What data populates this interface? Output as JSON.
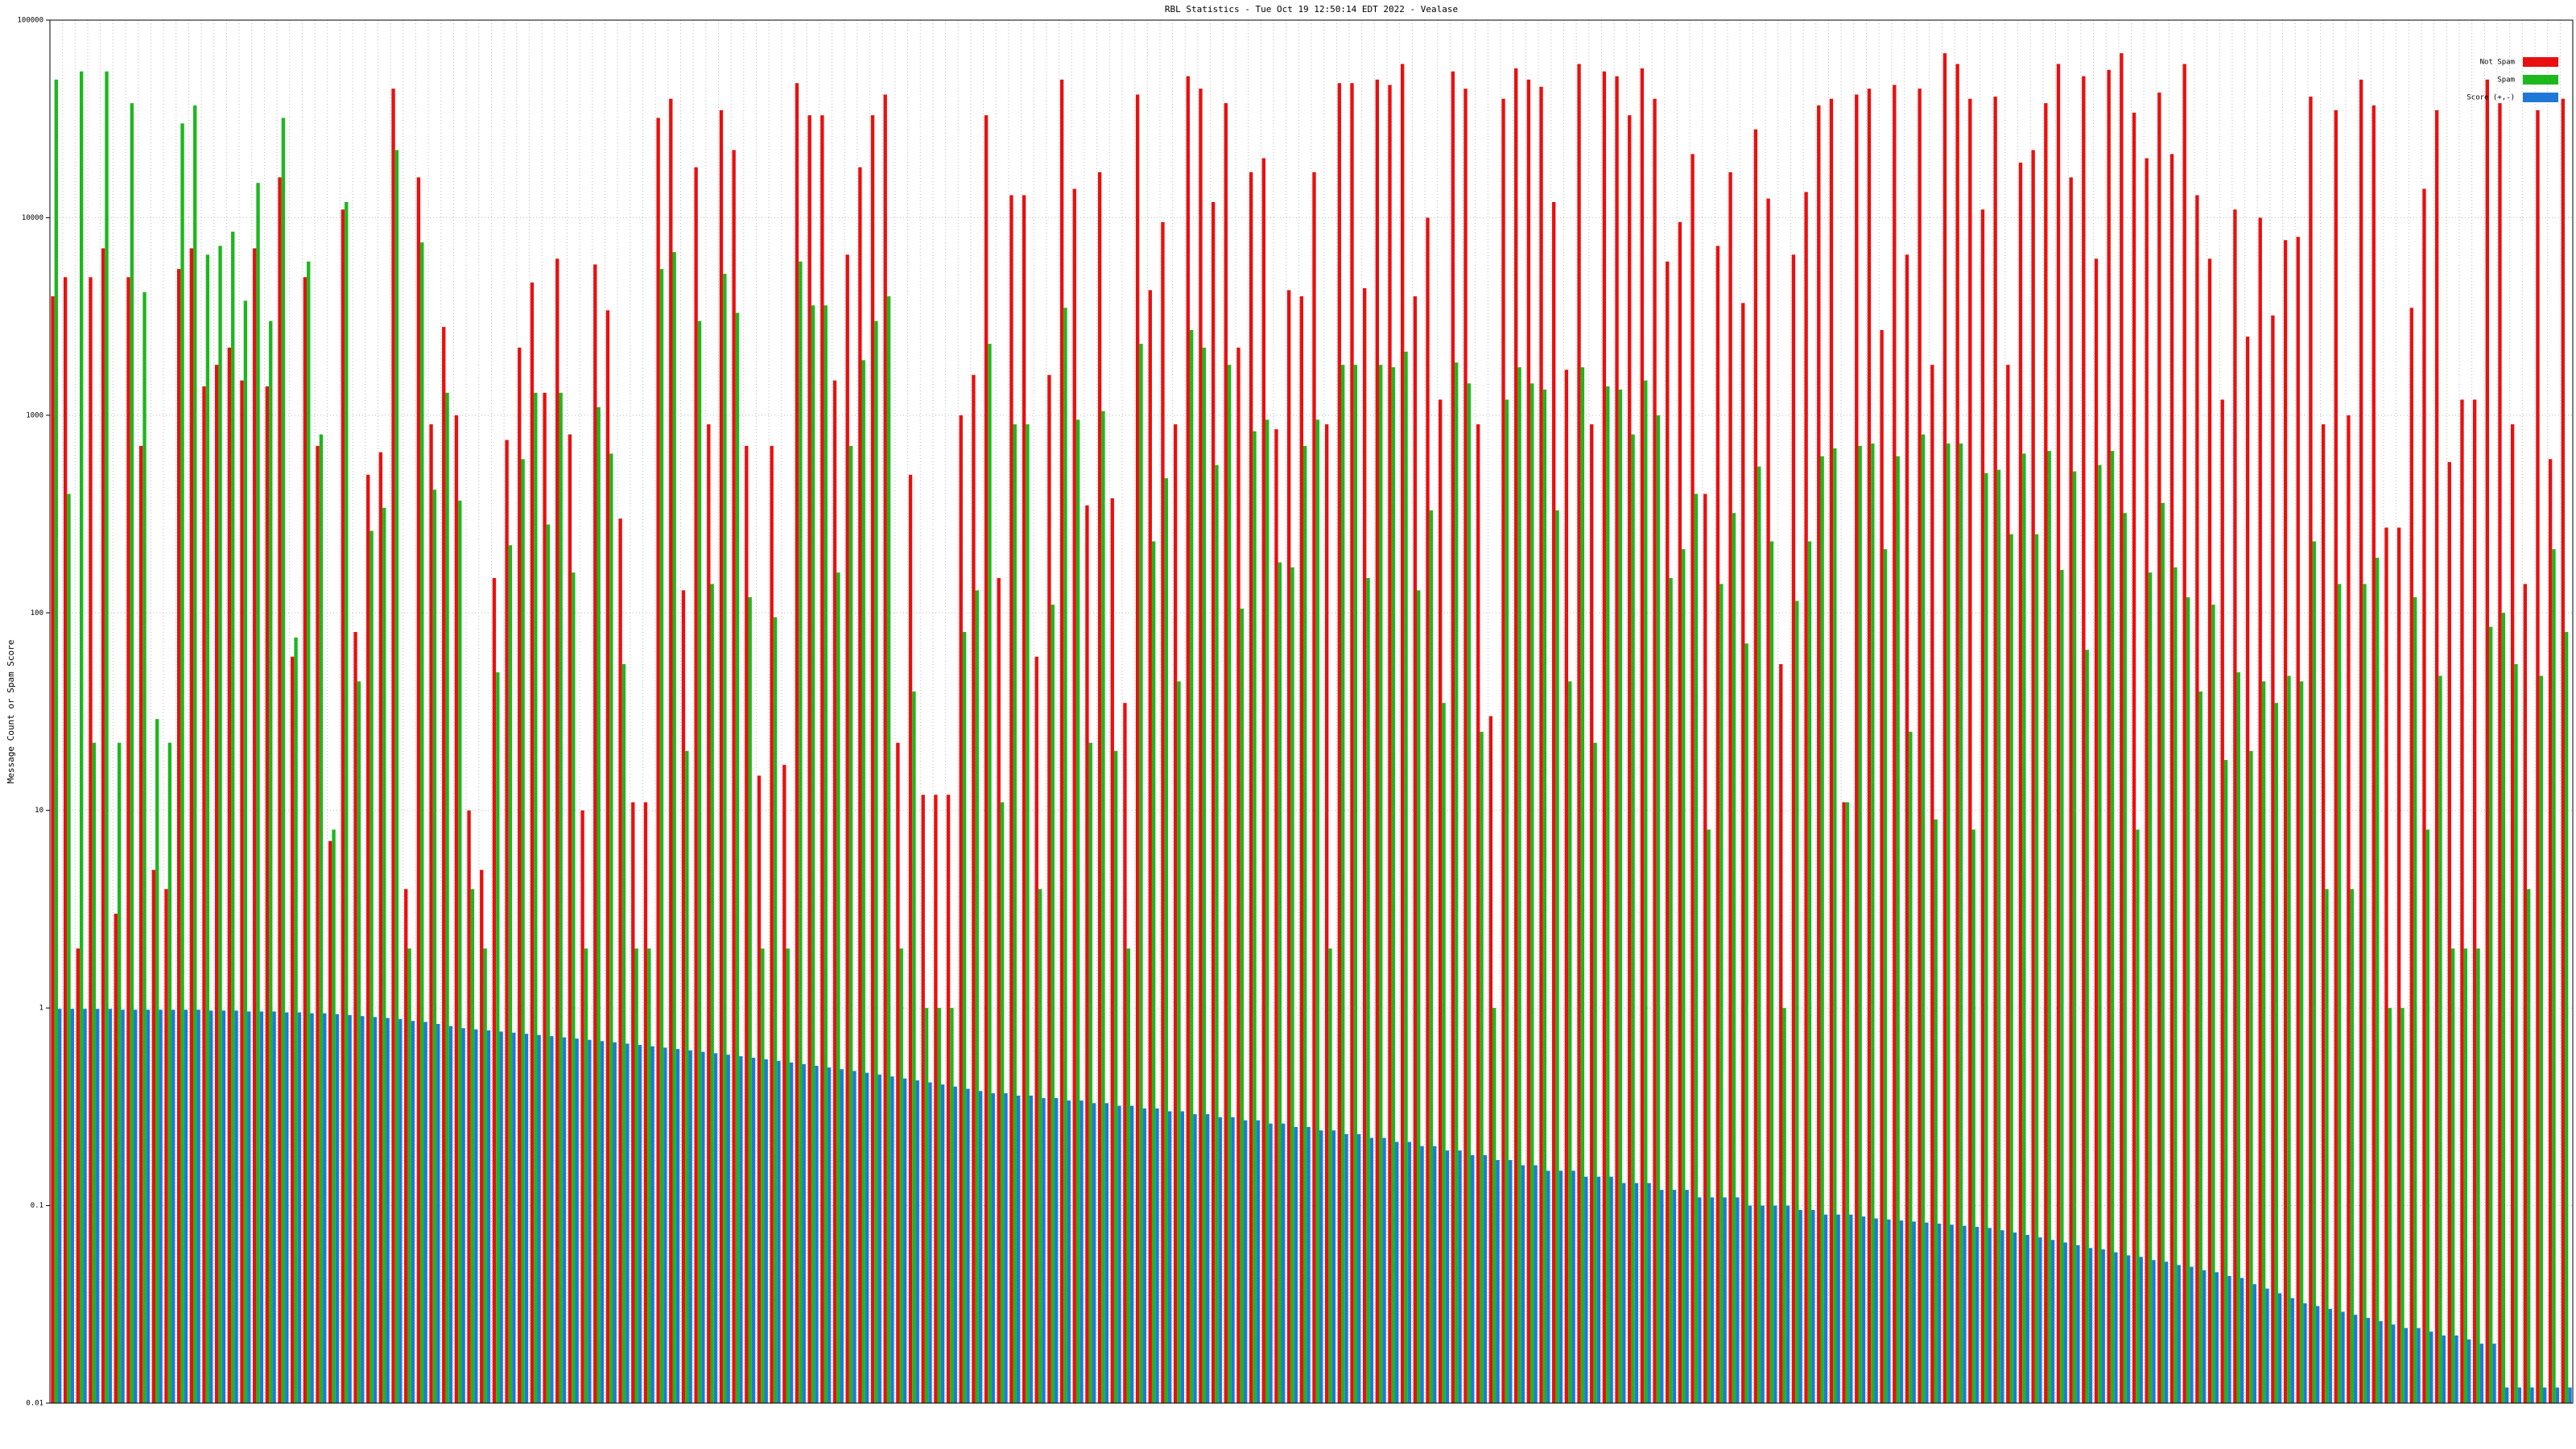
{
  "chart_data": {
    "type": "bar",
    "title": "RBL Statistics - Tue Oct 19 12:50:14 EDT 2022 - Vealase",
    "y_label": "Message Count or Spam Score",
    "log_scale": true,
    "grid": true,
    "legend": "upper right",
    "ylim": [
      0.01,
      100000
    ],
    "yticks": [
      0.01,
      0.1,
      1,
      10,
      100,
      1000,
      10000,
      100000
    ],
    "categories": [
      null,
      null,
      null,
      null,
      null,
      null,
      null,
      null,
      null,
      null,
      null,
      null,
      null,
      null,
      null,
      null,
      null,
      null,
      null,
      null,
      null,
      null,
      null,
      null,
      null,
      null,
      null,
      null,
      null,
      null,
      null,
      null,
      null,
      null,
      null,
      null,
      null,
      null,
      null,
      null,
      null,
      null,
      null,
      null,
      null,
      null,
      null,
      null,
      null,
      null,
      null,
      null,
      null,
      null,
      null,
      null,
      null,
      null,
      null,
      null,
      null,
      null,
      null,
      null,
      null,
      null,
      null,
      null,
      null,
      null,
      null,
      null,
      null,
      null,
      null,
      null,
      null,
      null,
      null,
      null,
      null,
      null,
      null,
      null,
      null,
      null,
      null,
      null,
      null,
      null,
      null,
      null,
      null,
      null,
      null,
      null,
      null,
      null,
      null,
      null,
      null,
      null,
      null,
      null,
      null,
      null,
      null,
      null,
      null,
      null,
      null,
      null,
      null,
      null,
      null,
      null,
      null,
      null,
      null,
      null,
      null,
      null,
      null,
      null,
      null,
      null,
      null,
      null,
      null,
      null,
      null,
      null,
      null,
      null,
      null,
      null,
      null,
      null,
      null,
      null,
      null,
      null,
      null,
      null,
      null,
      null,
      null,
      null,
      null,
      null,
      null,
      null,
      null,
      null,
      null,
      null,
      null,
      null,
      null,
      null,
      null,
      null,
      null,
      null,
      null,
      null,
      null,
      null,
      null,
      null,
      null,
      null,
      null,
      null,
      null,
      null,
      null,
      null,
      null,
      null,
      null,
      null,
      null,
      null,
      null,
      null,
      null,
      null,
      null,
      null,
      null,
      null,
      null,
      null,
      null,
      null,
      null,
      null,
      null,
      null
    ],
    "series": [
      {
        "name": "Not Spam",
        "color": "#e81010",
        "values": [
          4000,
          5000,
          2,
          5000,
          7000,
          3,
          5000,
          700,
          5,
          4,
          5500,
          7000,
          1400,
          1800,
          2200,
          1500,
          7000,
          1400,
          16000,
          60,
          5000,
          700,
          7,
          11000,
          80,
          500,
          650,
          45000,
          4,
          16000,
          900,
          2800,
          1000,
          10,
          5,
          150,
          750,
          2200,
          4700,
          1300,
          6200,
          800,
          10,
          5800,
          3400,
          300,
          11,
          11,
          32000,
          40000,
          130,
          18000,
          900,
          35000,
          22000,
          700,
          15,
          700,
          17,
          48000,
          33000,
          33000,
          1500,
          6500,
          18000,
          33000,
          42000,
          22,
          500,
          12,
          12,
          12,
          1000,
          1600,
          33000,
          150,
          13000,
          13000,
          60,
          1600,
          50000,
          14000,
          350,
          17000,
          380,
          35,
          42000,
          4300,
          9500,
          900,
          52000,
          45000,
          12000,
          38000,
          2200,
          17000,
          20000,
          850,
          4300,
          4000,
          17000,
          900,
          48000,
          48000,
          4400,
          50000,
          47000,
          60000,
          4000,
          10000,
          1200,
          55000,
          45000,
          900,
          30,
          40000,
          57000,
          50000,
          46000,
          12000,
          1700,
          60000,
          900,
          55000,
          52000,
          33000,
          57000,
          40000,
          6000,
          9500,
          21000,
          400,
          7200,
          17000,
          3700,
          28000,
          12500,
          55,
          6500,
          13500,
          37000,
          40000,
          11,
          42000,
          45000,
          2700,
          47000,
          6500,
          45000,
          1800,
          68000,
          60000,
          40000,
          11000,
          41000,
          1800,
          19000,
          22000,
          38000,
          60000,
          16000,
          52000,
          6200,
          56000,
          68000,
          34000,
          20000,
          43000,
          21000,
          60000,
          13000,
          6200,
          1200,
          11000,
          2500,
          10000,
          3200,
          7700,
          8000,
          41000,
          900,
          35000,
          1000,
          50000,
          37000,
          270,
          270,
          3500,
          14000,
          35000,
          580,
          1200,
          1200,
          50000,
          38000,
          900,
          140,
          35000,
          600,
          40000
        ]
      },
      {
        "name": "Spam",
        "color": "#1cb81c",
        "values": [
          50000,
          400,
          55000,
          22,
          55000,
          22,
          38000,
          4200,
          29,
          22,
          30000,
          37000,
          6500,
          7200,
          8500,
          3800,
          15000,
          3000,
          32000,
          75,
          6000,
          800,
          8,
          12000,
          45,
          260,
          340,
          22000,
          2,
          7500,
          420,
          1300,
          370,
          4,
          2,
          50,
          220,
          600,
          1300,
          280,
          1300,
          160,
          2,
          1100,
          640,
          55,
          2,
          2,
          5500,
          6700,
          20,
          3000,
          140,
          5200,
          3300,
          120,
          2,
          95,
          2,
          6000,
          3600,
          3600,
          160,
          700,
          1900,
          3000,
          4000,
          2,
          40,
          1,
          1,
          1,
          80,
          130,
          2300,
          11,
          900,
          900,
          4,
          110,
          3500,
          950,
          22,
          1050,
          20,
          2,
          2300,
          230,
          480,
          45,
          2700,
          2200,
          560,
          1800,
          105,
          830,
          950,
          180,
          170,
          700,
          950,
          2,
          1800,
          1800,
          150,
          1800,
          1750,
          2100,
          130,
          330,
          35,
          1850,
          1450,
          25,
          1,
          1200,
          1750,
          1450,
          1350,
          330,
          45,
          1750,
          22,
          1400,
          1350,
          800,
          1500,
          1000,
          150,
          210,
          400,
          8,
          140,
          320,
          70,
          550,
          230,
          1,
          115,
          230,
          620,
          680,
          11,
          700,
          720,
          210,
          620,
          25,
          800,
          9,
          720,
          720,
          8,
          510,
          530,
          250,
          640,
          250,
          660,
          165,
          520,
          65,
          560,
          660,
          320,
          8,
          160,
          360,
          170,
          120,
          40,
          110,
          18,
          50,
          20,
          45,
          35,
          48,
          45,
          230,
          4,
          140,
          4,
          140,
          190,
          1,
          1,
          120,
          8,
          48,
          2,
          2,
          2,
          85,
          100,
          55,
          4,
          48,
          210,
          80
        ]
      },
      {
        "name": "Score (+,-)",
        "color": "#1f78d8",
        "values": [
          0.99,
          0.99,
          0.99,
          0.99,
          0.99,
          0.98,
          0.98,
          0.98,
          0.98,
          0.98,
          0.98,
          0.98,
          0.97,
          0.97,
          0.97,
          0.96,
          0.96,
          0.96,
          0.95,
          0.95,
          0.94,
          0.94,
          0.93,
          0.92,
          0.91,
          0.9,
          0.89,
          0.88,
          0.86,
          0.85,
          0.83,
          0.81,
          0.79,
          0.78,
          0.77,
          0.76,
          0.75,
          0.74,
          0.73,
          0.72,
          0.71,
          0.7,
          0.69,
          0.68,
          0.67,
          0.66,
          0.65,
          0.64,
          0.63,
          0.62,
          0.61,
          0.6,
          0.59,
          0.58,
          0.57,
          0.56,
          0.55,
          0.54,
          0.53,
          0.52,
          0.51,
          0.5,
          0.49,
          0.48,
          0.47,
          0.46,
          0.45,
          0.44,
          0.43,
          0.42,
          0.41,
          0.4,
          0.39,
          0.38,
          0.37,
          0.37,
          0.36,
          0.36,
          0.35,
          0.35,
          0.34,
          0.34,
          0.33,
          0.33,
          0.32,
          0.32,
          0.31,
          0.31,
          0.3,
          0.3,
          0.29,
          0.29,
          0.28,
          0.28,
          0.27,
          0.27,
          0.26,
          0.26,
          0.25,
          0.25,
          0.24,
          0.24,
          0.23,
          0.23,
          0.22,
          0.22,
          0.21,
          0.21,
          0.2,
          0.2,
          0.19,
          0.19,
          0.18,
          0.18,
          0.17,
          0.17,
          0.16,
          0.16,
          0.15,
          0.15,
          0.15,
          0.14,
          0.14,
          0.14,
          0.13,
          0.13,
          0.13,
          0.12,
          0.12,
          0.12,
          0.11,
          0.11,
          0.11,
          0.11,
          0.1,
          0.1,
          0.1,
          0.1,
          0.095,
          0.095,
          0.09,
          0.09,
          0.09,
          0.088,
          0.086,
          0.085,
          0.084,
          0.083,
          0.082,
          0.081,
          0.08,
          0.079,
          0.078,
          0.077,
          0.075,
          0.073,
          0.071,
          0.069,
          0.067,
          0.065,
          0.063,
          0.061,
          0.06,
          0.058,
          0.056,
          0.055,
          0.053,
          0.052,
          0.05,
          0.049,
          0.047,
          0.046,
          0.044,
          0.043,
          0.04,
          0.038,
          0.036,
          0.034,
          0.032,
          0.031,
          0.03,
          0.029,
          0.028,
          0.027,
          0.026,
          0.025,
          0.024,
          0.024,
          0.023,
          0.022,
          0.022,
          0.021,
          0.02,
          0.02,
          0.012,
          0.012,
          0.012,
          0.012,
          0.012,
          0.012
        ]
      }
    ]
  }
}
